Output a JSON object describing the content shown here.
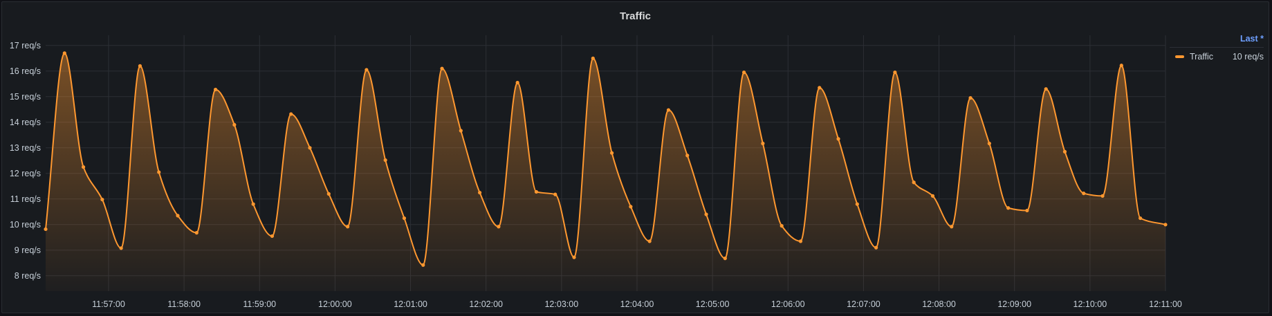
{
  "panel": {
    "title": "Traffic"
  },
  "legend": {
    "header": "Last *",
    "items": [
      {
        "name": "Traffic",
        "value": "10 req/s",
        "color": "#ff9830"
      }
    ]
  },
  "chart_data": {
    "type": "area",
    "title": "Traffic",
    "unit": "req/s",
    "ylim": [
      7.4,
      17.4
    ],
    "y_ticks": [
      8,
      9,
      10,
      11,
      12,
      13,
      14,
      15,
      16,
      17
    ],
    "y_tick_labels": [
      "8 req/s",
      "9 req/s",
      "10 req/s",
      "11 req/s",
      "12 req/s",
      "13 req/s",
      "14 req/s",
      "15 req/s",
      "16 req/s",
      "17 req/s"
    ],
    "x_start": "11:56:10",
    "x_end": "12:11:00",
    "x_ticks": [
      "11:57:00",
      "11:58:00",
      "11:59:00",
      "12:00:00",
      "12:01:00",
      "12:02:00",
      "12:03:00",
      "12:04:00",
      "12:05:00",
      "12:06:00",
      "12:07:00",
      "12:08:00",
      "12:09:00",
      "12:10:00",
      "12:11:00"
    ],
    "grid": true,
    "legend_position": "right",
    "series": [
      {
        "name": "Traffic",
        "color": "#ff9830",
        "points": [
          [
            "11:56:10",
            9.82
          ],
          [
            "11:56:25",
            16.7
          ],
          [
            "11:56:40",
            12.25
          ],
          [
            "11:56:55",
            10.98
          ],
          [
            "11:57:10",
            9.08
          ],
          [
            "11:57:25",
            16.2
          ],
          [
            "11:57:40",
            12.05
          ],
          [
            "11:57:55",
            10.35
          ],
          [
            "11:58:10",
            9.68
          ],
          [
            "11:58:25",
            15.28
          ],
          [
            "11:58:40",
            13.9
          ],
          [
            "11:58:55",
            10.8
          ],
          [
            "11:59:10",
            9.55
          ],
          [
            "11:59:25",
            14.32
          ],
          [
            "11:59:40",
            13.0
          ],
          [
            "11:59:55",
            11.2
          ],
          [
            "12:00:10",
            9.92
          ],
          [
            "12:00:25",
            16.05
          ],
          [
            "12:00:40",
            12.52
          ],
          [
            "12:00:55",
            10.25
          ],
          [
            "12:01:10",
            8.42
          ],
          [
            "12:01:25",
            16.1
          ],
          [
            "12:01:40",
            13.67
          ],
          [
            "12:01:55",
            11.25
          ],
          [
            "12:02:10",
            9.92
          ],
          [
            "12:02:25",
            15.55
          ],
          [
            "12:02:40",
            11.28
          ],
          [
            "12:02:55",
            11.18
          ],
          [
            "12:03:10",
            8.72
          ],
          [
            "12:03:25",
            16.5
          ],
          [
            "12:03:40",
            12.8
          ],
          [
            "12:03:55",
            10.7
          ],
          [
            "12:04:10",
            9.35
          ],
          [
            "12:04:25",
            14.48
          ],
          [
            "12:04:40",
            12.7
          ],
          [
            "12:04:55",
            10.4
          ],
          [
            "12:05:10",
            8.68
          ],
          [
            "12:05:25",
            15.95
          ],
          [
            "12:05:40",
            13.17
          ],
          [
            "12:05:55",
            9.95
          ],
          [
            "12:06:10",
            9.35
          ],
          [
            "12:06:25",
            15.35
          ],
          [
            "12:06:40",
            13.35
          ],
          [
            "12:06:55",
            10.8
          ],
          [
            "12:07:10",
            9.1
          ],
          [
            "12:07:25",
            15.95
          ],
          [
            "12:07:40",
            11.65
          ],
          [
            "12:07:55",
            11.12
          ],
          [
            "12:08:10",
            9.92
          ],
          [
            "12:08:25",
            14.95
          ],
          [
            "12:08:40",
            13.17
          ],
          [
            "12:08:55",
            10.65
          ],
          [
            "12:09:10",
            10.55
          ],
          [
            "12:09:25",
            15.3
          ],
          [
            "12:09:40",
            12.85
          ],
          [
            "12:09:55",
            11.22
          ],
          [
            "12:10:10",
            11.12
          ],
          [
            "12:10:25",
            16.22
          ],
          [
            "12:10:40",
            10.25
          ],
          [
            "12:11:00",
            10.0
          ]
        ]
      }
    ]
  }
}
